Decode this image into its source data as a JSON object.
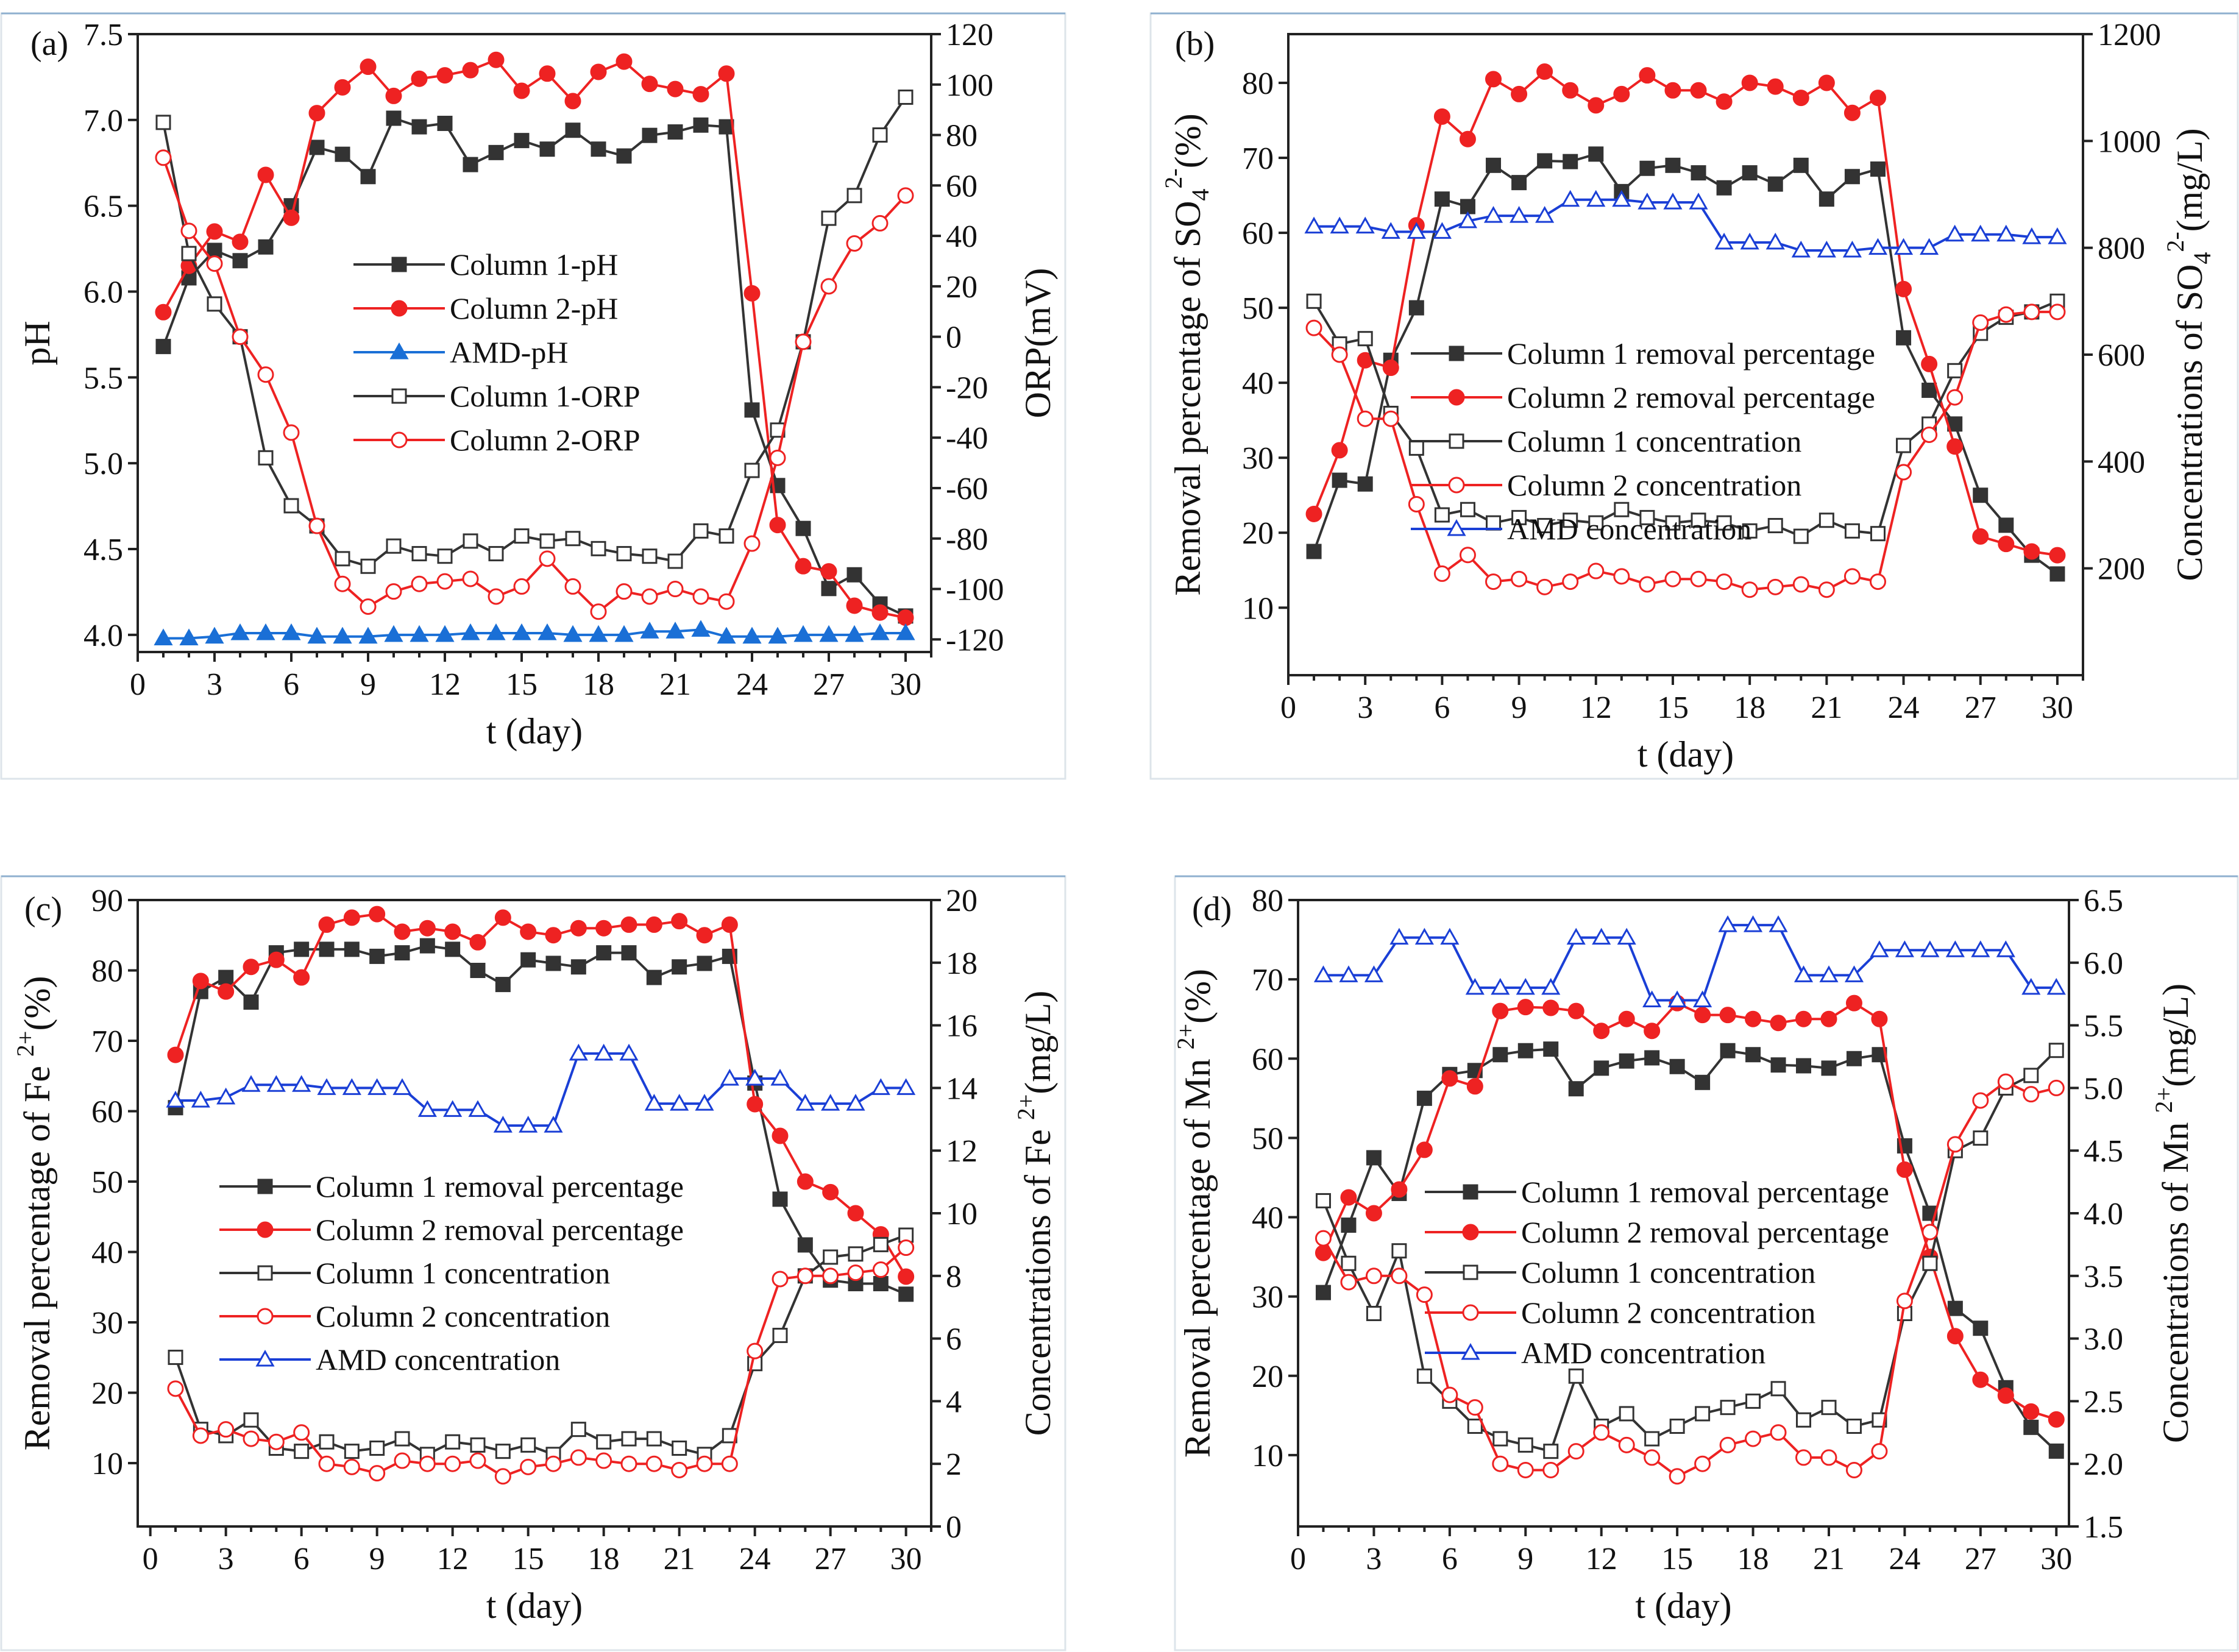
{
  "figure": {
    "panels": [
      {
        "tag": "(a)",
        "xlabel": "t (day)",
        "ylabel_left_parts": [
          "pH"
        ],
        "ylabel_right_parts": [
          "ORP(mV)"
        ]
      },
      {
        "tag": "(b)",
        "xlabel": "t (day)",
        "ylabel_left_parts": [
          "Removal percentage of SO",
          "4",
          "2-",
          "(%)"
        ],
        "ylabel_right_parts": [
          "Concentrations of SO",
          "4",
          "2-",
          "(mg/L)"
        ]
      },
      {
        "tag": "(c)",
        "xlabel": "t (day)",
        "ylabel_left_parts": [
          "Removal percentage of Fe ",
          "2+",
          "(%)"
        ],
        "ylabel_right_parts": [
          "Concentrations of Fe ",
          "2+",
          "(mg/L)"
        ]
      },
      {
        "tag": "(d)",
        "xlabel": "t (day)",
        "ylabel_left_parts": [
          "Removal percentage of Mn ",
          "2+",
          "(%)"
        ],
        "ylabel_right_parts": [
          "Concentrations of Mn ",
          "2+",
          "(mg/L)"
        ]
      }
    ]
  },
  "chart_data": [
    {
      "type": "line",
      "panel": "(a)",
      "xlabel": "t (day)",
      "ylabel": "pH",
      "ylabel_right": "ORP(mV)",
      "xlim": [
        0,
        31
      ],
      "ylim": [
        3.9,
        7.5
      ],
      "ylim_right": [
        -125,
        120
      ],
      "xticks": [
        0,
        3,
        6,
        9,
        12,
        15,
        18,
        21,
        24,
        27,
        30
      ],
      "yticks": [
        "4.0",
        "4.5",
        "5.0",
        "5.5",
        "6.0",
        "6.5",
        "7.0",
        "7.5"
      ],
      "yticks_right": [
        "-120",
        "-100",
        "-80",
        "-60",
        "-40",
        "-20",
        "0",
        "20",
        "40",
        "60",
        "80",
        "100",
        "120"
      ],
      "legend_position": "center",
      "series": [
        {
          "name": "Column 1-pH",
          "axis": "left",
          "color": "#333333",
          "marker": "square",
          "filled": true,
          "values": [
            5.68,
            6.08,
            6.24,
            6.18,
            6.26,
            6.5,
            6.84,
            6.8,
            6.67,
            7.01,
            6.96,
            6.98,
            6.74,
            6.81,
            6.88,
            6.83,
            6.94,
            6.83,
            6.79,
            6.91,
            6.93,
            6.97,
            6.96,
            5.31,
            4.87,
            4.62,
            4.27,
            4.35,
            4.18,
            4.11
          ]
        },
        {
          "name": "Column 2-pH",
          "axis": "left",
          "color": "#ee2222",
          "marker": "circle",
          "filled": true,
          "values": [
            5.88,
            6.15,
            6.35,
            6.29,
            6.68,
            6.43,
            7.04,
            7.19,
            7.31,
            7.14,
            7.24,
            7.26,
            7.29,
            7.35,
            7.17,
            7.27,
            7.11,
            7.28,
            7.34,
            7.21,
            7.18,
            7.15,
            7.27,
            5.99,
            4.64,
            4.4,
            4.37,
            4.17,
            4.13,
            4.1
          ]
        },
        {
          "name": "AMD-pH",
          "axis": "left",
          "color": "#1a6fd6",
          "marker": "triangle",
          "filled": true,
          "values": [
            3.98,
            3.98,
            3.99,
            4.01,
            4.01,
            4.01,
            3.99,
            3.99,
            3.99,
            4.0,
            4.0,
            4.0,
            4.01,
            4.01,
            4.01,
            4.01,
            4.0,
            4.0,
            4.0,
            4.02,
            4.02,
            4.03,
            3.99,
            3.99,
            3.99,
            4.0,
            4.0,
            4.0,
            4.01,
            4.01
          ]
        },
        {
          "name": "Column 1-ORP",
          "axis": "right",
          "color": "#333333",
          "marker": "square",
          "filled": false,
          "values": [
            85,
            33,
            13,
            0,
            -48,
            -67,
            -75,
            -88,
            -91,
            -83,
            -86,
            -87,
            -81,
            -86,
            -79,
            -81,
            -80,
            -84,
            -86,
            -87,
            -89,
            -77,
            -79,
            -53,
            -37,
            -2,
            47,
            56,
            80,
            95
          ]
        },
        {
          "name": "Column 2-ORP",
          "axis": "right",
          "color": "#ee2222",
          "marker": "circle",
          "filled": false,
          "values": [
            71,
            42,
            29,
            0,
            -15,
            -38,
            -75,
            -98,
            -107,
            -101,
            -98,
            -97,
            -96,
            -103,
            -99,
            -88,
            -99,
            -109,
            -101,
            -103,
            -100,
            -103,
            -105,
            -82,
            -48,
            -2,
            20,
            37,
            45,
            56
          ]
        }
      ]
    },
    {
      "type": "line",
      "panel": "(b)",
      "xlabel": "t (day)",
      "ylabel": "Removal percentage of SO4 2-(%)",
      "ylabel_right": "Concentrations of SO4 2-(mg/L)",
      "xlim": [
        0,
        31
      ],
      "ylim": [
        1,
        86.5
      ],
      "ylim_right": [
        0,
        1200
      ],
      "xticks": [
        0,
        3,
        6,
        9,
        12,
        15,
        18,
        21,
        24,
        27,
        30
      ],
      "yticks": [
        "10",
        "20",
        "30",
        "40",
        "50",
        "60",
        "70",
        "80"
      ],
      "yticks_right": [
        "200",
        "400",
        "600",
        "800",
        "1000",
        "1200"
      ],
      "legend_position": "center-left",
      "series": [
        {
          "name": "Column 1 removal percentage",
          "axis": "left",
          "color": "#333333",
          "marker": "square",
          "filled": true,
          "values": [
            17.5,
            27,
            26.5,
            43,
            50,
            64.5,
            63.5,
            69,
            66.7,
            69.6,
            69.5,
            70.5,
            65.5,
            68.6,
            69,
            68,
            66,
            68,
            66.5,
            69,
            64.5,
            67.5,
            68.5,
            46,
            39,
            34.5,
            25,
            21,
            17,
            14.5
          ]
        },
        {
          "name": "Column 2 removal percentage",
          "axis": "left",
          "color": "#ee2222",
          "marker": "circle",
          "filled": true,
          "values": [
            22.5,
            31,
            43,
            42,
            61,
            75.5,
            72.5,
            80.5,
            78.5,
            81.5,
            79,
            77,
            78.5,
            81,
            79,
            79,
            77.5,
            80,
            79.5,
            78,
            80,
            76,
            78,
            52.5,
            42.5,
            31.5,
            19.5,
            18.5,
            17.5,
            17
          ]
        },
        {
          "name": "Column 1 concentration",
          "axis": "right",
          "color": "#333333",
          "marker": "square",
          "filled": false,
          "values": [
            700,
            620,
            630,
            490,
            425,
            300,
            310,
            285,
            295,
            280,
            290,
            285,
            310,
            295,
            285,
            290,
            285,
            270,
            280,
            260,
            290,
            270,
            265,
            430,
            470,
            570,
            640,
            670,
            680,
            700
          ]
        },
        {
          "name": "Column 2 concentration",
          "axis": "right",
          "color": "#ee2222",
          "marker": "circle",
          "filled": false,
          "values": [
            650,
            600,
            480,
            480,
            320,
            190,
            225,
            175,
            180,
            165,
            175,
            195,
            185,
            170,
            180,
            180,
            175,
            160,
            165,
            170,
            160,
            185,
            175,
            380,
            450,
            520,
            660,
            675,
            680,
            680
          ]
        },
        {
          "name": "AMD concentration",
          "axis": "right",
          "color": "#1a3fd6",
          "marker": "triangle",
          "filled": false,
          "values": [
            840,
            840,
            840,
            830,
            830,
            830,
            850,
            860,
            860,
            860,
            890,
            890,
            890,
            885,
            885,
            885,
            810,
            810,
            810,
            795,
            795,
            795,
            800,
            800,
            800,
            825,
            825,
            825,
            820,
            820
          ]
        }
      ]
    },
    {
      "type": "line",
      "panel": "(c)",
      "xlabel": "t (day)",
      "ylabel": "Removal percentage of Fe 2+(%)",
      "ylabel_right": "Concentrations of Fe 2+(mg/L)",
      "xlim": [
        -0.5,
        31
      ],
      "ylim": [
        1,
        90
      ],
      "ylim_right": [
        0,
        20
      ],
      "xticks": [
        0,
        3,
        6,
        9,
        12,
        15,
        18,
        21,
        24,
        27,
        30
      ],
      "yticks": [
        "10",
        "20",
        "30",
        "40",
        "50",
        "60",
        "70",
        "80",
        "90"
      ],
      "yticks_right": [
        "0",
        "2",
        "4",
        "6",
        "8",
        "10",
        "12",
        "14",
        "16",
        "18",
        "20"
      ],
      "legend_position": "center-left",
      "series": [
        {
          "name": "Column 1 removal percentage",
          "axis": "left",
          "color": "#333333",
          "marker": "square",
          "filled": true,
          "values": [
            60.5,
            77,
            79,
            75.5,
            82.5,
            83,
            83,
            83,
            82,
            82.5,
            83.5,
            83,
            80,
            78,
            81.5,
            81,
            80.5,
            82.5,
            82.5,
            79,
            80.5,
            81,
            82,
            64,
            47.5,
            41,
            36,
            35.5,
            35.5,
            34
          ]
        },
        {
          "name": "Column 2 removal percentage",
          "axis": "left",
          "color": "#ee2222",
          "marker": "circle",
          "filled": true,
          "values": [
            68,
            78.5,
            77,
            80.5,
            81.5,
            79,
            86.5,
            87.5,
            88,
            85.5,
            86,
            85.5,
            84,
            87.5,
            85.5,
            85,
            86,
            86,
            86.5,
            86.5,
            87,
            85,
            86.5,
            61,
            56.5,
            50,
            48.5,
            45.5,
            42.5,
            36.5
          ]
        },
        {
          "name": "Column 1 concentration",
          "axis": "right",
          "color": "#333333",
          "marker": "square",
          "filled": false,
          "values": [
            5.4,
            3.1,
            2.9,
            3.4,
            2.5,
            2.4,
            2.7,
            2.4,
            2.5,
            2.8,
            2.3,
            2.7,
            2.6,
            2.4,
            2.6,
            2.3,
            3.1,
            2.7,
            2.8,
            2.8,
            2.5,
            2.3,
            2.9,
            5.2,
            6.1,
            8.0,
            8.6,
            8.7,
            9.0,
            9.3
          ]
        },
        {
          "name": "Column 2 concentration",
          "axis": "right",
          "color": "#ee2222",
          "marker": "circle",
          "filled": false,
          "values": [
            4.4,
            2.9,
            3.1,
            2.8,
            2.7,
            3.0,
            2.0,
            1.9,
            1.7,
            2.1,
            2.0,
            2.0,
            2.1,
            1.6,
            1.9,
            2.0,
            2.2,
            2.1,
            2.0,
            2.0,
            1.8,
            2.0,
            2.0,
            5.6,
            7.9,
            8.0,
            8.0,
            8.1,
            8.2,
            8.9
          ]
        },
        {
          "name": "AMD concentration",
          "axis": "right",
          "color": "#1a3fd6",
          "marker": "triangle",
          "filled": false,
          "values": [
            13.6,
            13.6,
            13.7,
            14.1,
            14.1,
            14.1,
            14.0,
            14.0,
            14.0,
            14.0,
            13.3,
            13.3,
            13.3,
            12.8,
            12.8,
            12.8,
            15.1,
            15.1,
            15.1,
            13.5,
            13.5,
            13.5,
            14.3,
            14.3,
            14.3,
            13.5,
            13.5,
            13.5,
            14.0,
            14.0
          ]
        }
      ]
    },
    {
      "type": "line",
      "panel": "(d)",
      "xlabel": "t (day)",
      "ylabel": "Removal percentage of Mn 2+(%)",
      "ylabel_right": "Concentrations of Mn 2+(mg/L)",
      "xlim": [
        0,
        30.5
      ],
      "ylim": [
        1,
        80
      ],
      "ylim_right": [
        1.5,
        6.5
      ],
      "xticks": [
        0,
        3,
        6,
        9,
        12,
        15,
        18,
        21,
        24,
        27,
        30
      ],
      "yticks": [
        "10",
        "20",
        "30",
        "40",
        "50",
        "60",
        "70",
        "80"
      ],
      "yticks_right": [
        "1.5",
        "2.0",
        "2.5",
        "3.0",
        "3.5",
        "4.0",
        "4.5",
        "5.0",
        "5.5",
        "6.0",
        "6.5"
      ],
      "legend_position": "center",
      "series": [
        {
          "name": "Column 1 removal percentage",
          "axis": "left",
          "color": "#333333",
          "marker": "square",
          "filled": true,
          "values": [
            30.5,
            39,
            47.5,
            43,
            55,
            58,
            58.5,
            60.5,
            61,
            61.2,
            56.2,
            58.8,
            59.7,
            60.1,
            59,
            57,
            61,
            60.5,
            59.2,
            59.1,
            58.8,
            60,
            60.5,
            49,
            40.5,
            28.5,
            26,
            18.5,
            13.5,
            10.5
          ]
        },
        {
          "name": "Column 2 removal percentage",
          "axis": "left",
          "color": "#ee2222",
          "marker": "circle",
          "filled": true,
          "values": [
            35.5,
            42.5,
            40.5,
            43.5,
            48.5,
            57.5,
            56.5,
            66,
            66.5,
            66.4,
            66,
            63.5,
            65,
            63.5,
            67,
            65.5,
            65.5,
            65,
            64.5,
            65,
            65,
            67,
            65,
            46,
            35,
            25,
            19.5,
            17.5,
            15.5,
            14.5
          ]
        },
        {
          "name": "Column 1 concentration",
          "axis": "right",
          "color": "#333333",
          "marker": "square",
          "filled": false,
          "values": [
            4.1,
            3.6,
            3.2,
            3.7,
            2.7,
            2.5,
            2.3,
            2.2,
            2.15,
            2.1,
            2.7,
            2.3,
            2.4,
            2.2,
            2.3,
            2.4,
            2.45,
            2.5,
            2.6,
            2.35,
            2.45,
            2.3,
            2.35,
            3.2,
            3.6,
            4.5,
            4.6,
            5.0,
            5.1,
            5.3
          ]
        },
        {
          "name": "Column 2 concentration",
          "axis": "right",
          "color": "#ee2222",
          "marker": "circle",
          "filled": false,
          "values": [
            3.8,
            3.45,
            3.5,
            3.5,
            3.35,
            2.55,
            2.45,
            2.0,
            1.95,
            1.95,
            2.1,
            2.25,
            2.15,
            2.05,
            1.9,
            2.0,
            2.15,
            2.2,
            2.25,
            2.05,
            2.05,
            1.95,
            2.1,
            3.3,
            3.85,
            4.55,
            4.9,
            5.05,
            4.95,
            5.0
          ]
        },
        {
          "name": "AMD concentration",
          "axis": "right",
          "color": "#1a3fd6",
          "marker": "triangle",
          "filled": false,
          "values": [
            5.9,
            5.9,
            5.9,
            6.2,
            6.2,
            6.2,
            5.8,
            5.8,
            5.8,
            5.8,
            6.2,
            6.2,
            6.2,
            5.7,
            5.7,
            5.7,
            6.3,
            6.3,
            6.3,
            5.9,
            5.9,
            5.9,
            6.1,
            6.1,
            6.1,
            6.1,
            6.1,
            6.1,
            5.8,
            5.8
          ]
        }
      ]
    }
  ]
}
